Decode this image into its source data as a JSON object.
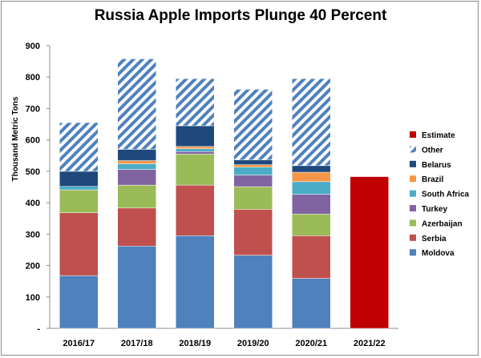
{
  "chart_data": {
    "type": "bar",
    "stacked": true,
    "title": "Russia  Apple Imports Plunge 40 Percent",
    "ylabel": "Thousand Metric Tons",
    "xlabel": "",
    "ylim": [
      0,
      900
    ],
    "yticks": [
      "-",
      "100",
      "200",
      "300",
      "400",
      "500",
      "600",
      "700",
      "800",
      "900"
    ],
    "grid": false,
    "legend_position": "right",
    "categories": [
      "2016/17",
      "2017/18",
      "2018/19",
      "2019/20",
      "2020/21",
      "2021/22"
    ],
    "series": [
      {
        "name": "Moldova",
        "color": "#4f81bd",
        "values": [
          168,
          262,
          295,
          233,
          159,
          0
        ]
      },
      {
        "name": "Serbia",
        "color": "#c0504d",
        "values": [
          200,
          121,
          161,
          146,
          136,
          0
        ]
      },
      {
        "name": "Azerbaijan",
        "color": "#9bbb59",
        "values": [
          73,
          73,
          99,
          72,
          69,
          0
        ]
      },
      {
        "name": "Turkey",
        "color": "#8064a2",
        "values": [
          0,
          50,
          8,
          37,
          63,
          0
        ]
      },
      {
        "name": "South Africa",
        "color": "#4bacc6",
        "values": [
          11,
          18,
          9,
          25,
          40,
          0
        ]
      },
      {
        "name": "Brazil",
        "color": "#f79646",
        "values": [
          0,
          10,
          7,
          8,
          30,
          0
        ]
      },
      {
        "name": "Belarus",
        "color": "#1f497d",
        "values": [
          48,
          36,
          66,
          15,
          21,
          0
        ]
      },
      {
        "name": "Other",
        "color": "#4f81bd",
        "pattern": "hatch",
        "values": [
          155,
          288,
          150,
          225,
          277,
          0
        ]
      },
      {
        "name": "Estimate",
        "color": "#c00000",
        "values": [
          0,
          0,
          0,
          0,
          0,
          483
        ]
      }
    ],
    "legend_order": [
      "Estimate",
      "Other",
      "Belarus",
      "Brazil",
      "South Africa",
      "Turkey",
      "Azerbaijan",
      "Serbia",
      "Moldova"
    ]
  }
}
